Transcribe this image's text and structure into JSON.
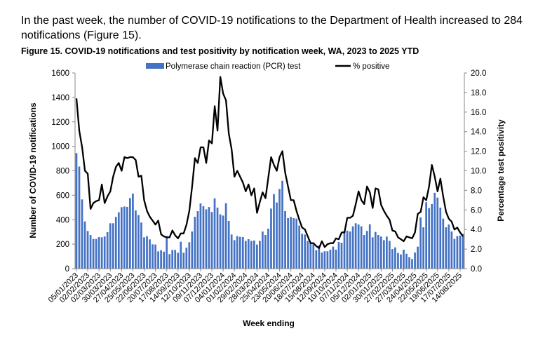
{
  "intro_text": "In the past week, the number of COVID-19 notifications to the Department of Health increased to 284 notifications (Figure 15).",
  "chart_data": {
    "type": "bar+line",
    "title": "Figure 15. COVID-19 notifications and test positivity by notification week, WA, 2023 to 2025 YTD",
    "xlabel": "Week ending",
    "ylabel": "Number of COVID-19 notifications",
    "y2label": "Percentage test positivity",
    "ylim": [
      0,
      1600
    ],
    "y2lim": [
      0,
      20
    ],
    "yticks": [
      "0",
      "200",
      "400",
      "600",
      "800",
      "1000",
      "1200",
      "1400",
      "1600"
    ],
    "y2ticks": [
      "0.0",
      "2.0",
      "4.0",
      "6.0",
      "8.0",
      "10.0",
      "12.0",
      "14.0",
      "16.0",
      "18.0",
      "20.0"
    ],
    "legend_position": "top",
    "grid": false,
    "tick_labels": [
      "05/01/2023",
      "02/02/2023",
      "02/03/2023",
      "30/03/2023",
      "27/04/2023",
      "25/05/2023",
      "22/06/2023",
      "20/07/2023",
      "17/08/2023",
      "14/09/2023",
      "12/10/2023",
      "09/11/2023",
      "07/12/2023",
      "04/01/2024",
      "01/02/2024",
      "29/02/2024",
      "28/03/2024",
      "25/04/2024",
      "23/05/2024",
      "20/06/2024",
      "18/07/2024",
      "15/08/2024",
      "12/09/2024",
      "10/10/2024",
      "07/11/2024",
      "05/12/2024",
      "02/01/2025",
      "30/01/2025",
      "27/02/2025",
      "27/03/2025",
      "24/04/2025",
      "22/05/2025",
      "19/06/2025",
      "17/07/2025",
      "14/08/2025"
    ],
    "categories": [
      "05/01/2023",
      "12/01/2023",
      "19/01/2023",
      "26/01/2023",
      "02/02/2023",
      "09/02/2023",
      "16/02/2023",
      "23/02/2023",
      "02/03/2023",
      "09/03/2023",
      "16/03/2023",
      "23/03/2023",
      "30/03/2023",
      "06/04/2023",
      "13/04/2023",
      "20/04/2023",
      "27/04/2023",
      "04/05/2023",
      "11/05/2023",
      "18/05/2023",
      "25/05/2023",
      "01/06/2023",
      "08/06/2023",
      "15/06/2023",
      "22/06/2023",
      "29/06/2023",
      "06/07/2023",
      "13/07/2023",
      "20/07/2023",
      "27/07/2023",
      "03/08/2023",
      "10/08/2023",
      "17/08/2023",
      "24/08/2023",
      "31/08/2023",
      "07/09/2023",
      "14/09/2023",
      "21/09/2023",
      "28/09/2023",
      "05/10/2023",
      "12/10/2023",
      "19/10/2023",
      "26/10/2023",
      "02/11/2023",
      "09/11/2023",
      "16/11/2023",
      "23/11/2023",
      "30/11/2023",
      "07/12/2023",
      "14/12/2023",
      "21/12/2023",
      "28/12/2023",
      "04/01/2024",
      "11/01/2024",
      "18/01/2024",
      "25/01/2024",
      "01/02/2024",
      "08/02/2024",
      "15/02/2024",
      "22/02/2024",
      "29/02/2024",
      "07/03/2024",
      "14/03/2024",
      "21/03/2024",
      "28/03/2024",
      "04/04/2024",
      "11/04/2024",
      "18/04/2024",
      "25/04/2024",
      "02/05/2024",
      "09/05/2024",
      "16/05/2024",
      "23/05/2024",
      "30/05/2024",
      "06/06/2024",
      "13/06/2024",
      "20/06/2024",
      "27/06/2024",
      "04/07/2024",
      "11/07/2024",
      "18/07/2024",
      "25/07/2024",
      "01/08/2024",
      "08/08/2024",
      "15/08/2024",
      "22/08/2024",
      "29/08/2024",
      "05/09/2024",
      "12/09/2024",
      "19/09/2024",
      "26/09/2024",
      "03/10/2024",
      "10/10/2024",
      "17/10/2024",
      "24/10/2024",
      "31/10/2024",
      "07/11/2024",
      "14/11/2024",
      "21/11/2024",
      "28/11/2024",
      "05/12/2024",
      "12/12/2024",
      "19/12/2024",
      "26/12/2024",
      "02/01/2025",
      "09/01/2025",
      "16/01/2025",
      "23/01/2025",
      "30/01/2025",
      "06/02/2025",
      "13/02/2025",
      "20/02/2025",
      "27/02/2025",
      "06/03/2025",
      "13/03/2025",
      "20/03/2025",
      "27/03/2025",
      "03/04/2025",
      "10/04/2025",
      "17/04/2025",
      "24/04/2025",
      "01/05/2025",
      "08/05/2025",
      "15/05/2025",
      "22/05/2025",
      "29/05/2025",
      "05/06/2025",
      "12/06/2025",
      "19/06/2025",
      "26/06/2025",
      "03/07/2025",
      "10/07/2025",
      "17/07/2025",
      "24/07/2025",
      "31/07/2025",
      "07/08/2025",
      "14/08/2025",
      "21/08/2025"
    ],
    "series": [
      {
        "name": "Polymerase chain reaction (PCR) test",
        "type": "bar",
        "axis": "left",
        "color": "#4472C4",
        "values": [
          944,
          835,
          566,
          386,
          308,
          275,
          243,
          243,
          258,
          256,
          263,
          298,
          371,
          371,
          423,
          461,
          503,
          508,
          505,
          577,
          614,
          476,
          438,
          377,
          256,
          265,
          239,
          199,
          197,
          141,
          151,
          139,
          266,
          119,
          153,
          153,
          130,
          220,
          130,
          172,
          216,
          304,
          424,
          470,
          533,
          510,
          485,
          504,
          463,
          575,
          499,
          444,
          434,
          535,
          390,
          279,
          233,
          266,
          260,
          258,
          227,
          241,
          227,
          230,
          197,
          227,
          304,
          275,
          327,
          491,
          609,
          541,
          651,
          718,
          470,
          413,
          423,
          413,
          409,
          352,
          285,
          279,
          227,
          208,
          199,
          151,
          189,
          132,
          142,
          142,
          155,
          180,
          155,
          218,
          212,
          311,
          311,
          304,
          346,
          371,
          361,
          346,
          275,
          308,
          363,
          256,
          300,
          275,
          262,
          233,
          262,
          227,
          160,
          174,
          128,
          116,
          155,
          122,
          94,
          79,
          132,
          180,
          419,
          338,
          543,
          495,
          528,
          620,
          581,
          499,
          409,
          338,
          361,
          304,
          243,
          266,
          270,
          284
        ]
      },
      {
        "name": "% positive",
        "type": "line",
        "axis": "right",
        "color": "#000000",
        "values": [
          17.4,
          14.1,
          12.4,
          10.0,
          9.7,
          6.1,
          6.7,
          6.9,
          7.0,
          8.6,
          6.7,
          7.4,
          7.9,
          9.4,
          10.4,
          10.8,
          10.0,
          11.4,
          11.3,
          11.4,
          11.4,
          11.1,
          9.4,
          9.5,
          7.0,
          5.9,
          5.3,
          4.9,
          4.5,
          4.9,
          3.5,
          3.3,
          3.2,
          3.2,
          3.9,
          3.4,
          3.1,
          3.6,
          3.6,
          4.5,
          5.9,
          8.4,
          11.3,
          10.8,
          12.4,
          12.4,
          10.8,
          13.1,
          12.8,
          16.6,
          14.1,
          19.6,
          17.9,
          17.2,
          13.8,
          12.2,
          9.4,
          10.0,
          9.4,
          8.8,
          7.9,
          8.6,
          7.5,
          8.2,
          5.7,
          6.8,
          7.8,
          7.2,
          9.3,
          11.4,
          10.6,
          10.0,
          11.4,
          12.0,
          9.8,
          8.4,
          7.0,
          7.0,
          5.9,
          5.0,
          4.2,
          4.0,
          3.3,
          2.6,
          2.6,
          2.3,
          2.1,
          2.8,
          2.2,
          2.5,
          2.6,
          2.6,
          3.1,
          3.0,
          3.7,
          3.7,
          5.2,
          5.2,
          5.4,
          6.6,
          7.9,
          7.0,
          6.6,
          8.4,
          7.8,
          6.2,
          8.2,
          8.1,
          6.5,
          5.9,
          5.4,
          5.0,
          3.9,
          3.8,
          3.2,
          3.0,
          2.8,
          3.3,
          3.2,
          3.1,
          3.7,
          5.6,
          5.8,
          7.3,
          7.0,
          8.4,
          10.6,
          9.4,
          7.9,
          9.2,
          7.4,
          5.8,
          5.1,
          4.8,
          4.0,
          4.2,
          3.7,
          3.3
        ]
      }
    ]
  }
}
